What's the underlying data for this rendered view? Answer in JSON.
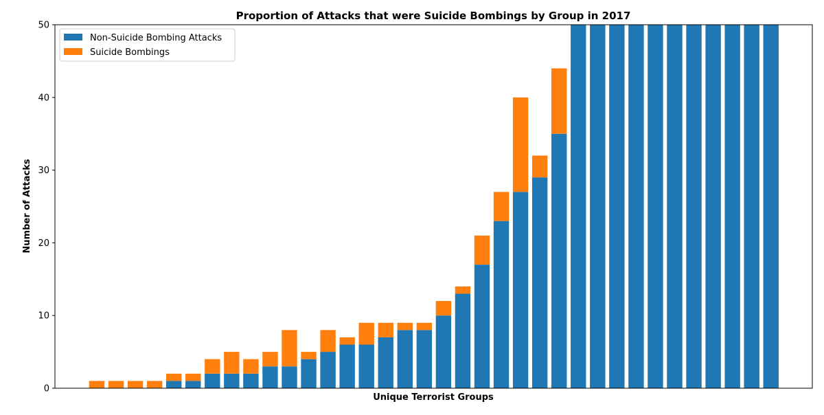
{
  "chart_data": {
    "type": "bar",
    "stacked": true,
    "title": "Proportion of Attacks that were Suicide Bombings by Group in 2017",
    "xlabel": "Unique Terrorist Groups",
    "ylabel": "Number of Attacks",
    "ylim": [
      0,
      50
    ],
    "yticks": [
      0,
      10,
      20,
      30,
      40,
      50
    ],
    "xticks": [],
    "legend_position": "upper-left",
    "series": [
      {
        "name": "Non-Suicide Bombing Attacks",
        "color": "#1f77b4",
        "values": [
          0,
          0,
          0,
          0,
          1,
          1,
          2,
          2,
          2,
          3,
          3,
          4,
          5,
          6,
          6,
          7,
          8,
          8,
          10,
          13,
          17,
          23,
          27,
          29,
          35,
          50,
          50,
          50,
          50,
          50,
          50,
          50,
          50,
          50,
          50,
          50
        ]
      },
      {
        "name": "Suicide Bombings",
        "color": "#ff7f0e",
        "values": [
          1,
          1,
          1,
          1,
          1,
          1,
          2,
          3,
          2,
          2,
          5,
          1,
          3,
          1,
          3,
          2,
          1,
          1,
          2,
          1,
          4,
          4,
          13,
          3,
          9,
          0,
          0,
          0,
          0,
          0,
          0,
          0,
          0,
          0,
          0,
          0
        ]
      }
    ]
  }
}
